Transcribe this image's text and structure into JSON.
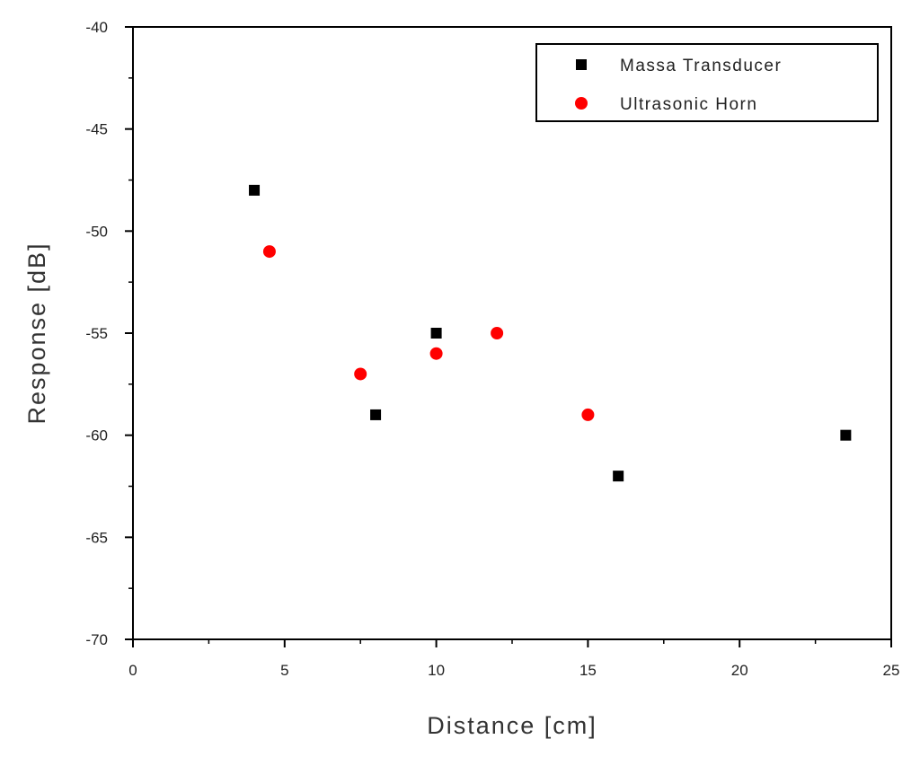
{
  "chart_data": {
    "type": "scatter",
    "xlabel": "Distance [cm]",
    "ylabel": "Response [dB]",
    "xlim": [
      0,
      25
    ],
    "ylim": [
      -70,
      -40
    ],
    "x_ticks": [
      0,
      5,
      10,
      15,
      20,
      25
    ],
    "y_ticks": [
      -70,
      -65,
      -60,
      -55,
      -50,
      -45,
      -40
    ],
    "grid": false,
    "legend_position": "top-right",
    "series": [
      {
        "name": "Massa Transducer",
        "marker": "square",
        "color": "#000000",
        "x": [
          4,
          8,
          10,
          16,
          23.5
        ],
        "y": [
          -48,
          -59,
          -55,
          -62,
          -60
        ]
      },
      {
        "name": "Ultrasonic Horn",
        "marker": "circle",
        "color": "#ff0000",
        "x": [
          4.5,
          7.5,
          10,
          12,
          15
        ],
        "y": [
          -51,
          -57,
          -56,
          -55,
          -59
        ]
      }
    ]
  }
}
